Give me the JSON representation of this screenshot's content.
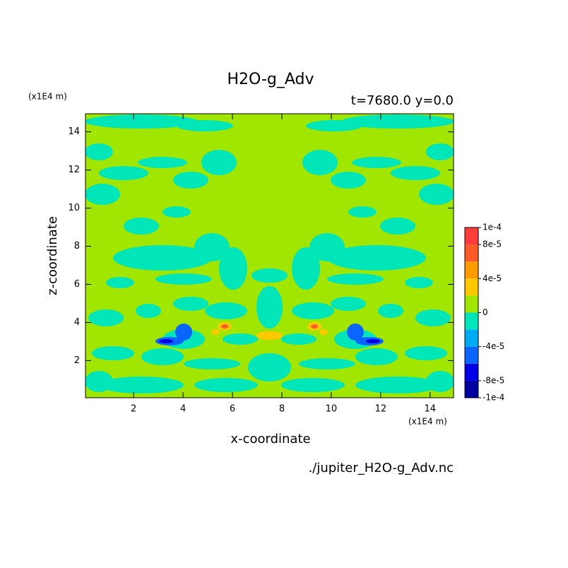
{
  "chart_data": {
    "type": "contour",
    "title": "H2O-g_Adv",
    "subtitle": "t=7680.0 y=0.0",
    "x_label": "x-coordinate",
    "y_label": "z-coordinate",
    "x_unit": "(x1E4 m)",
    "y_unit": "(x1E4 m)",
    "file_name": "./jupiter_H2O-g_Adv.nc",
    "xlim": [
      0.05,
      14.95
    ],
    "ylim": [
      0.05,
      14.95
    ],
    "xticks": [
      2,
      4,
      6,
      8,
      10,
      12,
      14
    ],
    "yticks": [
      2,
      4,
      6,
      8,
      10,
      12,
      14
    ],
    "levels": [
      -0.0001,
      -8e-05,
      -6e-05,
      -4e-05,
      -2e-05,
      0,
      2e-05,
      4e-05,
      6e-05,
      8e-05,
      0.0001
    ],
    "colors": [
      "#0000a0",
      "#0000e6",
      "#0a64ff",
      "#00aaf5",
      "#00e6b9",
      "#a0e600",
      "#ffc800",
      "#ff9a00",
      "#ff5a28",
      "#ff3c3c"
    ],
    "colorbar_ticks": [
      {
        "value": 0.0001,
        "label": "1e-4"
      },
      {
        "value": 8e-05,
        "label": "8e-5"
      },
      {
        "value": 4e-05,
        "label": "4e-5"
      },
      {
        "value": 0,
        "label": "0"
      },
      {
        "value": -4e-05,
        "label": "-4e-5"
      },
      {
        "value": -8e-05,
        "label": "-8e-5"
      },
      {
        "value": -0.0001,
        "label": "-1e-4"
      }
    ]
  }
}
